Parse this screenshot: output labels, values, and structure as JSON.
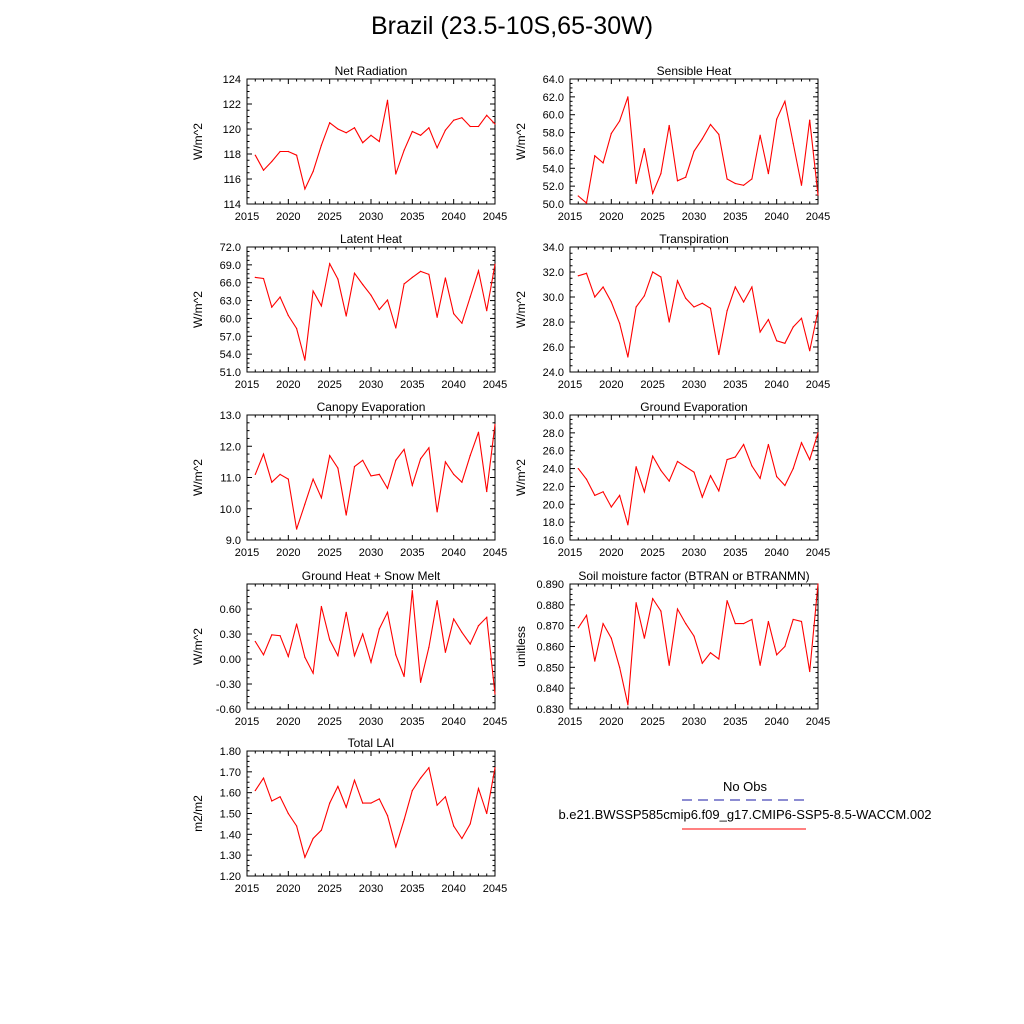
{
  "title": "Brazil (23.5-10S,65-30W)",
  "legend": {
    "obs_label": "No Obs",
    "obs_color": "#1a1aa6",
    "model_label": "b.e21.BWSSP585cmip6.f09_g17.CMIP6-SSP5-8.5-WACCM.002",
    "model_color": "#ff0000"
  },
  "chart_data": [
    {
      "type": "line",
      "title": "Net Radiation",
      "ylabel": "W/m^2",
      "x": [
        2016,
        2017,
        2018,
        2019,
        2020,
        2021,
        2022,
        2023,
        2024,
        2025,
        2026,
        2027,
        2028,
        2029,
        2030,
        2031,
        2032,
        2033,
        2034,
        2035,
        2036,
        2037,
        2038,
        2039,
        2040,
        2041,
        2042,
        2043,
        2044,
        2045
      ],
      "values": [
        117.9,
        116.7,
        117.4,
        118.2,
        118.2,
        117.9,
        115.2,
        116.6,
        118.7,
        120.5,
        120.0,
        119.7,
        120.1,
        118.9,
        119.5,
        119.0,
        122.3,
        116.4,
        118.3,
        119.8,
        119.5,
        120.1,
        118.5,
        119.9,
        120.7,
        120.9,
        120.2,
        120.2,
        121.1,
        120.4
      ],
      "xlim": [
        2015,
        2045
      ],
      "ylim": [
        114,
        124
      ],
      "xticks": [
        "2015",
        "2020",
        "2025",
        "2030",
        "2035",
        "2040",
        "2045"
      ],
      "yticks": [
        "114",
        "116",
        "118",
        "120",
        "122",
        "124"
      ],
      "ytick_values": [
        114,
        116,
        118,
        120,
        122,
        124
      ],
      "series_color": "#ff0000"
    },
    {
      "type": "line",
      "title": "Sensible Heat",
      "ylabel": "W/m^2",
      "x": [
        2016,
        2017,
        2018,
        2019,
        2020,
        2021,
        2022,
        2023,
        2024,
        2025,
        2026,
        2027,
        2028,
        2029,
        2030,
        2031,
        2032,
        2033,
        2034,
        2035,
        2036,
        2037,
        2038,
        2039,
        2040,
        2041,
        2042,
        2043,
        2044,
        2045
      ],
      "values": [
        50.9,
        50.1,
        55.4,
        54.6,
        57.9,
        59.3,
        62.0,
        52.3,
        56.2,
        51.2,
        53.4,
        58.8,
        52.6,
        53.0,
        55.9,
        57.3,
        58.9,
        57.8,
        52.8,
        52.3,
        52.1,
        52.8,
        57.7,
        53.4,
        59.5,
        61.5,
        56.8,
        52.1,
        59.4,
        51.0
      ],
      "xlim": [
        2015,
        2045
      ],
      "ylim": [
        50,
        64
      ],
      "xticks": [
        "2015",
        "2020",
        "2025",
        "2030",
        "2035",
        "2040",
        "2045"
      ],
      "yticks": [
        "50.0",
        "52.0",
        "54.0",
        "56.0",
        "58.0",
        "60.0",
        "62.0",
        "64.0"
      ],
      "ytick_values": [
        50,
        52,
        54,
        56,
        58,
        60,
        62,
        64
      ],
      "series_color": "#ff0000"
    },
    {
      "type": "line",
      "title": "Latent Heat",
      "ylabel": "W/m^2",
      "x": [
        2016,
        2017,
        2018,
        2019,
        2020,
        2021,
        2022,
        2023,
        2024,
        2025,
        2026,
        2027,
        2028,
        2029,
        2030,
        2031,
        2032,
        2033,
        2034,
        2035,
        2036,
        2037,
        2038,
        2039,
        2040,
        2041,
        2042,
        2043,
        2044,
        2045
      ],
      "values": [
        66.9,
        66.7,
        61.9,
        63.6,
        60.5,
        58.3,
        53.0,
        64.6,
        62.1,
        69.2,
        66.6,
        60.4,
        67.6,
        65.7,
        63.9,
        61.5,
        63.1,
        58.4,
        65.8,
        66.9,
        67.9,
        67.4,
        60.2,
        66.8,
        60.8,
        59.2,
        63.6,
        68.0,
        61.3,
        69.1
      ],
      "xlim": [
        2015,
        2045
      ],
      "ylim": [
        51,
        72
      ],
      "xticks": [
        "2015",
        "2020",
        "2025",
        "2030",
        "2035",
        "2040",
        "2045"
      ],
      "yticks": [
        "51.0",
        "54.0",
        "57.0",
        "60.0",
        "63.0",
        "66.0",
        "69.0",
        "72.0"
      ],
      "ytick_values": [
        51,
        54,
        57,
        60,
        63,
        66,
        69,
        72
      ],
      "series_color": "#ff0000"
    },
    {
      "type": "line",
      "title": "Transpiration",
      "ylabel": "W/m^2",
      "x": [
        2016,
        2017,
        2018,
        2019,
        2020,
        2021,
        2022,
        2023,
        2024,
        2025,
        2026,
        2027,
        2028,
        2029,
        2030,
        2031,
        2032,
        2033,
        2034,
        2035,
        2036,
        2037,
        2038,
        2039,
        2040,
        2041,
        2042,
        2043,
        2044,
        2045
      ],
      "values": [
        31.7,
        31.9,
        30.0,
        30.8,
        29.6,
        27.9,
        25.2,
        29.2,
        30.1,
        32.0,
        31.6,
        28.0,
        31.3,
        29.9,
        29.2,
        29.5,
        29.1,
        25.4,
        28.9,
        30.8,
        29.6,
        30.8,
        27.2,
        28.2,
        26.5,
        26.3,
        27.6,
        28.3,
        25.7,
        28.9
      ],
      "xlim": [
        2015,
        2045
      ],
      "ylim": [
        24,
        34
      ],
      "xticks": [
        "2015",
        "2020",
        "2025",
        "2030",
        "2035",
        "2040",
        "2045"
      ],
      "yticks": [
        "24.0",
        "26.0",
        "28.0",
        "30.0",
        "32.0",
        "34.0"
      ],
      "ytick_values": [
        24,
        26,
        28,
        30,
        32,
        34
      ],
      "series_color": "#ff0000"
    },
    {
      "type": "line",
      "title": "Canopy Evaporation",
      "ylabel": "W/m^2",
      "x": [
        2016,
        2017,
        2018,
        2019,
        2020,
        2021,
        2022,
        2023,
        2024,
        2025,
        2026,
        2027,
        2028,
        2029,
        2030,
        2031,
        2032,
        2033,
        2034,
        2035,
        2036,
        2037,
        2038,
        2039,
        2040,
        2041,
        2042,
        2043,
        2044,
        2045
      ],
      "values": [
        11.1,
        11.75,
        10.85,
        11.1,
        10.95,
        9.35,
        10.15,
        10.95,
        10.35,
        11.7,
        11.3,
        9.8,
        11.35,
        11.55,
        11.05,
        11.1,
        10.65,
        11.55,
        11.9,
        10.75,
        11.6,
        11.95,
        9.9,
        11.5,
        11.1,
        10.85,
        11.7,
        12.45,
        10.55,
        12.7
      ],
      "xlim": [
        2015,
        2045
      ],
      "ylim": [
        9,
        13
      ],
      "xticks": [
        "2015",
        "2020",
        "2025",
        "2030",
        "2035",
        "2040",
        "2045"
      ],
      "yticks": [
        "9.0",
        "10.0",
        "11.0",
        "12.0",
        "13.0"
      ],
      "ytick_values": [
        9,
        10,
        11,
        12,
        13
      ],
      "series_color": "#ff0000"
    },
    {
      "type": "line",
      "title": "Ground Evaporation",
      "ylabel": "W/m^2",
      "x": [
        2016,
        2017,
        2018,
        2019,
        2020,
        2021,
        2022,
        2023,
        2024,
        2025,
        2026,
        2027,
        2028,
        2029,
        2030,
        2031,
        2032,
        2033,
        2034,
        2035,
        2036,
        2037,
        2038,
        2039,
        2040,
        2041,
        2042,
        2043,
        2044,
        2045
      ],
      "values": [
        24.0,
        22.8,
        21.0,
        21.4,
        19.7,
        21.0,
        17.7,
        24.2,
        21.4,
        25.4,
        23.8,
        22.6,
        24.8,
        24.2,
        23.6,
        20.8,
        23.2,
        21.5,
        25.0,
        25.3,
        26.7,
        24.3,
        22.9,
        26.7,
        23.1,
        22.1,
        24.0,
        26.9,
        25.0,
        28.0
      ],
      "xlim": [
        2015,
        2045
      ],
      "ylim": [
        16,
        30
      ],
      "xticks": [
        "2015",
        "2020",
        "2025",
        "2030",
        "2035",
        "2040",
        "2045"
      ],
      "yticks": [
        "16.0",
        "18.0",
        "20.0",
        "22.0",
        "24.0",
        "26.0",
        "28.0",
        "30.0"
      ],
      "ytick_values": [
        16,
        18,
        20,
        22,
        24,
        26,
        28,
        30
      ],
      "series_color": "#ff0000"
    },
    {
      "type": "line",
      "title": "Ground Heat + Snow Melt",
      "ylabel": "W/m^2",
      "x": [
        2016,
        2017,
        2018,
        2019,
        2020,
        2021,
        2022,
        2023,
        2024,
        2025,
        2026,
        2027,
        2028,
        2029,
        2030,
        2031,
        2032,
        2033,
        2034,
        2035,
        2036,
        2037,
        2038,
        2039,
        2040,
        2041,
        2042,
        2043,
        2044,
        2045
      ],
      "values": [
        0.21,
        0.05,
        0.29,
        0.28,
        0.03,
        0.42,
        0.02,
        -0.17,
        0.63,
        0.23,
        0.04,
        0.56,
        0.04,
        0.3,
        -0.04,
        0.36,
        0.56,
        0.05,
        -0.21,
        0.82,
        -0.28,
        0.14,
        0.7,
        0.08,
        0.48,
        0.32,
        0.18,
        0.4,
        0.5,
        -0.42
      ],
      "xlim": [
        2015,
        2045
      ],
      "ylim": [
        -0.6,
        0.9
      ],
      "xticks": [
        "2015",
        "2020",
        "2025",
        "2030",
        "2035",
        "2040",
        "2045"
      ],
      "yticks": [
        "-0.60",
        "-0.30",
        "0.00",
        "0.30",
        "0.60"
      ],
      "ytick_values": [
        -0.6,
        -0.3,
        0,
        0.3,
        0.6
      ],
      "series_color": "#ff0000"
    },
    {
      "type": "line",
      "title": "Soil moisture factor (BTRAN or BTRANMN)",
      "ylabel": "unitless",
      "x": [
        2016,
        2017,
        2018,
        2019,
        2020,
        2021,
        2022,
        2023,
        2024,
        2025,
        2026,
        2027,
        2028,
        2029,
        2030,
        2031,
        2032,
        2033,
        2034,
        2035,
        2036,
        2037,
        2038,
        2039,
        2040,
        2041,
        2042,
        2043,
        2044,
        2045
      ],
      "values": [
        0.869,
        0.875,
        0.853,
        0.871,
        0.864,
        0.85,
        0.832,
        0.881,
        0.864,
        0.883,
        0.877,
        0.851,
        0.878,
        0.871,
        0.865,
        0.852,
        0.857,
        0.854,
        0.882,
        0.871,
        0.871,
        0.873,
        0.851,
        0.872,
        0.856,
        0.86,
        0.873,
        0.872,
        0.848,
        0.89
      ],
      "xlim": [
        2015,
        2045
      ],
      "ylim": [
        0.83,
        0.89
      ],
      "xticks": [
        "2015",
        "2020",
        "2025",
        "2030",
        "2035",
        "2040",
        "2045"
      ],
      "yticks": [
        "0.830",
        "0.840",
        "0.850",
        "0.860",
        "0.870",
        "0.880",
        "0.890"
      ],
      "ytick_values": [
        0.83,
        0.84,
        0.85,
        0.86,
        0.87,
        0.88,
        0.89
      ],
      "series_color": "#ff0000"
    },
    {
      "type": "line",
      "title": "Total LAI",
      "ylabel": "m2/m2",
      "x": [
        2016,
        2017,
        2018,
        2019,
        2020,
        2021,
        2022,
        2023,
        2024,
        2025,
        2026,
        2027,
        2028,
        2029,
        2030,
        2031,
        2032,
        2033,
        2034,
        2035,
        2036,
        2037,
        2038,
        2039,
        2040,
        2041,
        2042,
        2043,
        2044,
        2045
      ],
      "values": [
        1.61,
        1.67,
        1.56,
        1.58,
        1.5,
        1.44,
        1.29,
        1.38,
        1.42,
        1.55,
        1.63,
        1.53,
        1.66,
        1.55,
        1.55,
        1.57,
        1.49,
        1.34,
        1.47,
        1.61,
        1.67,
        1.72,
        1.54,
        1.58,
        1.44,
        1.38,
        1.45,
        1.62,
        1.5,
        1.72
      ],
      "xlim": [
        2015,
        2045
      ],
      "ylim": [
        1.2,
        1.8
      ],
      "xticks": [
        "2015",
        "2020",
        "2025",
        "2030",
        "2035",
        "2040",
        "2045"
      ],
      "yticks": [
        "1.20",
        "1.30",
        "1.40",
        "1.50",
        "1.60",
        "1.70",
        "1.80"
      ],
      "ytick_values": [
        1.2,
        1.3,
        1.4,
        1.5,
        1.6,
        1.7,
        1.8
      ],
      "series_color": "#ff0000"
    }
  ]
}
